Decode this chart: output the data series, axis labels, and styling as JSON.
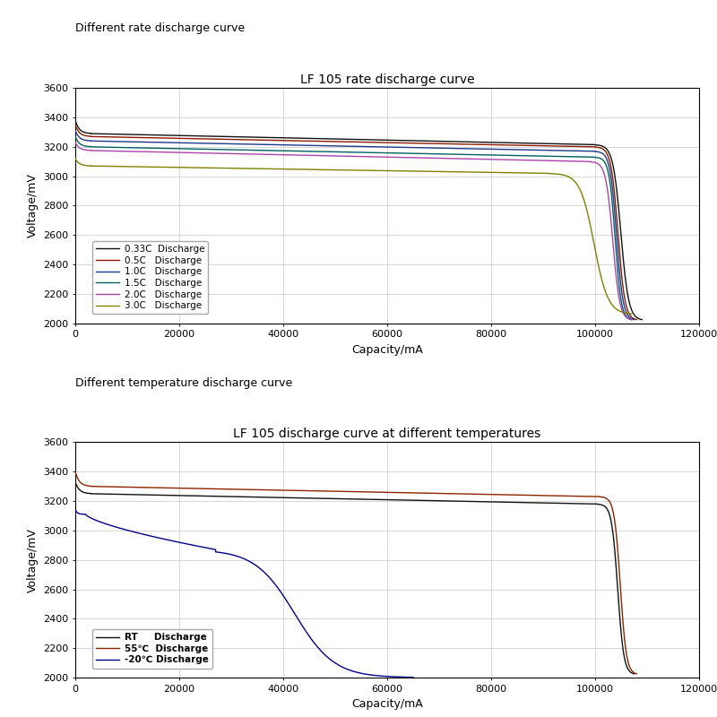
{
  "top_title": "LF 105 rate discharge curve",
  "top_label": "Different rate discharge curve",
  "bottom_title": "LF 105 discharge curve at different temperatures",
  "bottom_label": "Different temperature discharge curve",
  "xlabel": "Capacity/mA",
  "ylabel": "Voltage/mV",
  "xlim": [
    0,
    120000
  ],
  "ylim": [
    2000,
    3600
  ],
  "yticks": [
    2000,
    2200,
    2400,
    2600,
    2800,
    3000,
    3200,
    3400,
    3600
  ],
  "xticks": [
    0,
    20000,
    40000,
    60000,
    80000,
    100000,
    120000
  ],
  "rate_curves": [
    {
      "label": "0.33C  Discharge",
      "color": "#111111",
      "start": 3380,
      "plateau_start": 3290,
      "plateau_end": 3215,
      "knee": 100000,
      "end_cap": 109000,
      "end_v": 2020
    },
    {
      "label": "0.5C   Discharge",
      "color": "#8B1A00",
      "start": 3350,
      "plateau_start": 3270,
      "plateau_end": 3200,
      "knee": 100000,
      "end_cap": 108000,
      "end_v": 2020
    },
    {
      "label": "1.0C   Discharge",
      "color": "#1E3A8A",
      "start": 3310,
      "plateau_start": 3240,
      "plateau_end": 3170,
      "knee": 100000,
      "end_cap": 107500,
      "end_v": 2020
    },
    {
      "label": "1.5C   Discharge",
      "color": "#006060",
      "start": 3270,
      "plateau_start": 3200,
      "plateau_end": 3130,
      "knee": 100000,
      "end_cap": 107000,
      "end_v": 2020
    },
    {
      "label": "2.0C   Discharge",
      "color": "#AA44AA",
      "start": 3230,
      "plateau_start": 3175,
      "plateau_end": 3100,
      "knee": 99000,
      "end_cap": 107000,
      "end_v": 2020
    },
    {
      "label": "3.0C   Discharge",
      "color": "#808000",
      "start": 3120,
      "plateau_start": 3070,
      "plateau_end": 3020,
      "knee": 91000,
      "end_cap": 107000,
      "end_v": 2060
    }
  ],
  "temp_curves": [
    {
      "label": "RT     Discharge",
      "color": "#111111",
      "start": 3330,
      "plateau_start": 3250,
      "plateau_end": 3180,
      "knee": 100500,
      "end_cap": 107500,
      "end_v": 2020
    },
    {
      "label": "55℃  Discharge",
      "color": "#8B2500",
      "start": 3400,
      "plateau_start": 3300,
      "plateau_end": 3230,
      "knee": 101000,
      "end_cap": 108000,
      "end_v": 2020
    },
    {
      "label": "-20℃ Discharge",
      "color": "#00008B",
      "start": 3140,
      "plateau_start": 3110,
      "plateau_end": 2870,
      "knee": 27000,
      "end_cap": 65000,
      "end_v": 2000
    }
  ],
  "bg_color": "#ffffff",
  "grid_color": "#c8c8c8",
  "font_size_label": 9,
  "font_size_title": 10,
  "font_size_axis": 8
}
